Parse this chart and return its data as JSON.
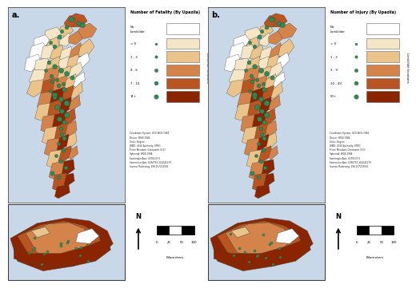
{
  "panel_a_label": "a.",
  "panel_b_label": "b.",
  "panel_a_title": "Number of Fatality (By Upazila)",
  "panel_b_title": "Number of Injury (By Upazila)",
  "legend_a_categories": [
    "= 0",
    "1 - 3",
    "4 - 6",
    "7 - 10",
    "11+"
  ],
  "legend_b_categories": [
    "= 0",
    "1 - 2",
    "3 - 9",
    "10 - 49",
    "50+"
  ],
  "side_label": "Landslide locations",
  "no_landslide_label": "No\nLandslide",
  "scale_label": "Kilometers",
  "scale_ticks": [
    "0",
    "25",
    "50",
    "100"
  ],
  "coord_text": "Coordinate System: GCS WGS 1984\nDatum: WGS 1984\nUnits: Degree\nWKID: 4326 Authority: EPSG\nPrime Meridian: Greenwich (0.0)\nSpheroid: WGS 1984\nSemimajor Axis: 6378137.0\nSemiminor Axis: 6356752.314245179\nInverse Flattening: 298.257223563",
  "bg_color": "#FFFFFF",
  "map_water_color": "#C8D8E8",
  "map_outline_color": "#444444",
  "colors_choropleth": [
    "#F5E6C8",
    "#EAC48A",
    "#D4844A",
    "#B85520",
    "#8B2500"
  ],
  "color_white_region": "#FFFFFF",
  "color_light_gray_region": "#E8E8E8",
  "dot_color": "#2E8B57",
  "dot_edge_color": "#1A5532",
  "north_label": "N",
  "tick_color": "#999999",
  "border_color": "#333333"
}
